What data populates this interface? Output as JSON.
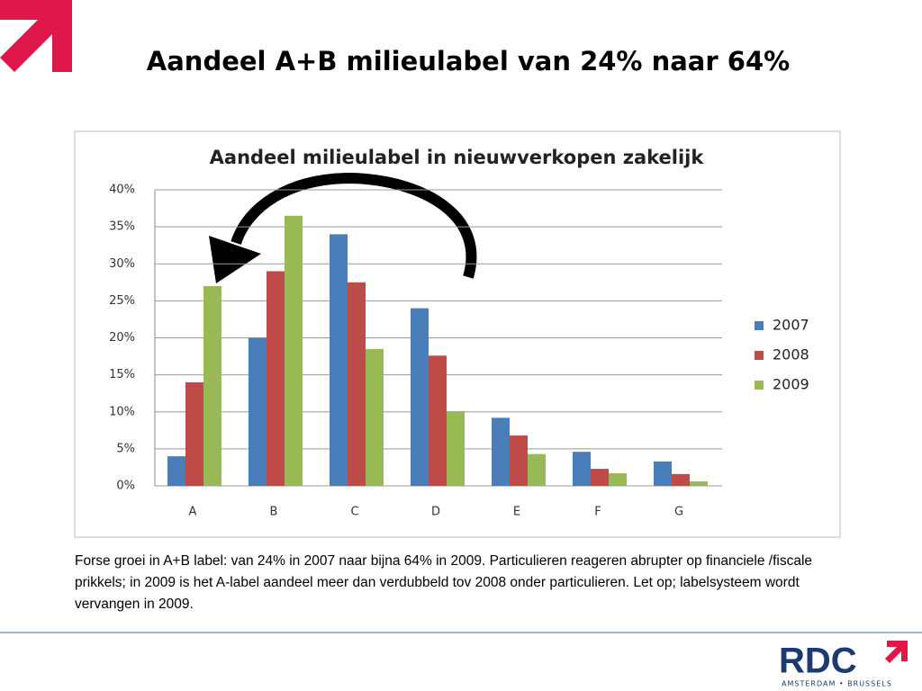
{
  "slide_title": "Aandeel A+B milieulabel van 24% naar 64%",
  "chart_data": {
    "type": "bar",
    "title": "Aandeel milieulabel in nieuwverkopen zakelijk",
    "categories": [
      "A",
      "B",
      "C",
      "D",
      "E",
      "F",
      "G"
    ],
    "series": [
      {
        "name": "2007",
        "color": "#4a7ebb",
        "values": [
          4,
          20,
          34,
          24,
          9.2,
          4.6,
          3.3
        ]
      },
      {
        "name": "2008",
        "color": "#be4b48",
        "values": [
          14,
          29,
          27.5,
          17.6,
          6.8,
          2.3,
          1.6
        ]
      },
      {
        "name": "2009",
        "color": "#98b954",
        "values": [
          27,
          36.5,
          18.5,
          10.1,
          4.3,
          1.7,
          0.6
        ]
      }
    ],
    "ylim": [
      0,
      40
    ],
    "yticks": [
      {
        "value": 0,
        "label": "0%"
      },
      {
        "value": 5,
        "label": "5%"
      },
      {
        "value": 10,
        "label": "10%"
      },
      {
        "value": 15,
        "label": "15%"
      },
      {
        "value": 20,
        "label": "20%"
      },
      {
        "value": 25,
        "label": "25%"
      },
      {
        "value": 30,
        "label": "30%"
      },
      {
        "value": 35,
        "label": "35%"
      },
      {
        "value": 40,
        "label": "40%"
      }
    ],
    "grid": true,
    "legend": "right"
  },
  "body_text": "Forse groei in A+B label: van 24% in 2007 naar bijna 64% in 2009. Particulieren reageren abrupter op financiele /fiscale prikkels; in 2009 is het A-label aandeel meer dan verdubbeld tov 2008 onder particulieren. Let op; labelsysteem wordt vervangen in 2009.",
  "logo": {
    "name": "RDC",
    "tagline": "AMSTERDAM • BRUSSELS"
  }
}
